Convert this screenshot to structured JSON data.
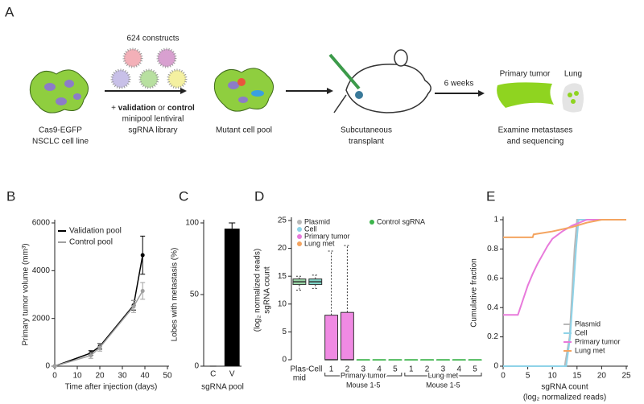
{
  "schematic": {
    "panel": "A",
    "constructs": "624 constructs",
    "cell_line": [
      "Cas9-EGFP",
      "NSCLC cell line"
    ],
    "library": {
      "prefix": "+ ",
      "validation": "validation",
      "middle": " or ",
      "control": "control",
      "lines": [
        "minipool lentiviral",
        "sgRNA library"
      ]
    },
    "mutant": "Mutant cell pool",
    "transplant": [
      "Subcutaneous",
      "transplant"
    ],
    "time": "6 weeks",
    "tumor": "Primary tumor",
    "lung": "Lung",
    "examine": [
      "Examine metastases",
      "and sequencing"
    ]
  },
  "chart_data": [
    {
      "type": "line",
      "panel": "B",
      "ylabel": "Primary tumor volume (mm³)",
      "xlabel": "Time after injection (days)",
      "xlim": [
        0,
        50
      ],
      "xticks": [
        0,
        10,
        20,
        30,
        40,
        50
      ],
      "ylim": [
        0,
        6000
      ],
      "yticks": [
        0,
        2000,
        4000,
        6000
      ],
      "legend": "upper left",
      "markers": true,
      "series": [
        {
          "name": "Validation pool",
          "color": "#000000",
          "x": [
            0,
            16,
            20,
            35,
            39
          ],
          "values": [
            0,
            550,
            830,
            2550,
            4650
          ],
          "errors": [
            0,
            100,
            120,
            200,
            800
          ]
        },
        {
          "name": "Control pool",
          "color": "#a0a0a0",
          "x": [
            0,
            16,
            20,
            35,
            39
          ],
          "values": [
            0,
            450,
            780,
            2500,
            3150
          ],
          "errors": [
            0,
            120,
            150,
            250,
            350
          ]
        }
      ]
    },
    {
      "type": "bar",
      "panel": "C",
      "ylabel": "Lobes with metastasis (%)",
      "xlabel": "sgRNA pool",
      "categories": [
        "C",
        "V"
      ],
      "values": [
        0,
        96
      ],
      "errors": [
        0,
        4
      ],
      "color": "#000000",
      "ylim": [
        0,
        100
      ],
      "yticks": [
        0,
        50,
        100
      ]
    },
    {
      "type": "box",
      "panel": "D",
      "ylabel": [
        "sgRNA count",
        "(log₂ normalized reads)"
      ],
      "categories": [
        [
          "Plas-",
          "mid"
        ],
        [
          "Cell"
        ],
        [
          "1"
        ],
        [
          "2"
        ],
        [
          "3"
        ],
        [
          "4"
        ],
        [
          "5"
        ],
        [
          "1"
        ],
        [
          "2"
        ],
        [
          "3"
        ],
        [
          "4"
        ],
        [
          "5"
        ]
      ],
      "groups": [
        {
          "label": "Primary tumor",
          "sublabel": "Mouse 1-5"
        },
        {
          "label": "Lung met",
          "sublabel": "Mouse 1-5"
        }
      ],
      "ylim": [
        0,
        25
      ],
      "yticks": [
        0,
        5,
        10,
        15,
        20,
        25
      ],
      "legend": [
        {
          "name": "Plasmid",
          "color": "#b8b8b8"
        },
        {
          "name": "Cell",
          "color": "#8fd3e8"
        },
        {
          "name": "Primary tumor",
          "color": "#e87adb"
        },
        {
          "name": "Lung met",
          "color": "#f4a460"
        },
        {
          "name": "Control sgRNA",
          "color": "#3cb44b"
        }
      ],
      "boxes": [
        {
          "low": 12.5,
          "q1": 13.5,
          "median": 14,
          "q3": 14.5,
          "high": 15,
          "color": "#9ad8a8"
        },
        {
          "low": 12.8,
          "q1": 13.5,
          "median": 14,
          "q3": 14.5,
          "high": 15.2,
          "color": "#7fd6c8"
        },
        {
          "low": 0,
          "q1": 0,
          "median": 0,
          "q3": 8,
          "high": 19.5,
          "color": "#f08ae3"
        },
        {
          "low": 0,
          "q1": 0,
          "median": 0,
          "q3": 8.5,
          "high": 20.5,
          "color": "#f08ae3"
        },
        {
          "low": 0,
          "q1": 0,
          "median": 0,
          "q3": 0,
          "high": 0,
          "color": "#3cb44b"
        },
        {
          "low": 0,
          "q1": 0,
          "median": 0,
          "q3": 0,
          "high": 0,
          "color": "#3cb44b"
        },
        {
          "low": 0,
          "q1": 0,
          "median": 0,
          "q3": 0,
          "high": 0,
          "color": "#3cb44b"
        },
        {
          "low": 0,
          "q1": 0,
          "median": 0,
          "q3": 0,
          "high": 0,
          "color": "#3cb44b"
        },
        {
          "low": 0,
          "q1": 0,
          "median": 0,
          "q3": 0,
          "high": 0,
          "color": "#3cb44b"
        },
        {
          "low": 0,
          "q1": 0,
          "median": 0,
          "q3": 0,
          "high": 0,
          "color": "#3cb44b"
        },
        {
          "low": 0,
          "q1": 0,
          "median": 0,
          "q3": 0,
          "high": 0,
          "color": "#3cb44b"
        },
        {
          "low": 0,
          "q1": 0,
          "median": 0,
          "q3": 0,
          "high": 0,
          "color": "#3cb44b"
        }
      ]
    },
    {
      "type": "line",
      "panel": "E",
      "ylabel": "Cumulative fraction",
      "xlabel": [
        "sgRNA count",
        "(log₂ normalized reads)"
      ],
      "xlim": [
        0,
        25
      ],
      "xticks": [
        0,
        5,
        10,
        15,
        20,
        25
      ],
      "ylim": [
        0,
        1
      ],
      "yticks": [
        0,
        0.2,
        0.4,
        0.6,
        0.8,
        1
      ],
      "legend": "lower right",
      "markers": false,
      "series": [
        {
          "name": "Plasmid",
          "color": "#b8b8b8",
          "x": [
            0,
            12.5,
            13.5,
            14,
            14.5,
            15,
            25
          ],
          "values": [
            0,
            0,
            0.2,
            0.5,
            0.8,
            1,
            1
          ]
        },
        {
          "name": "Cell",
          "color": "#8fd3e8",
          "x": [
            0,
            12.8,
            13.6,
            14.2,
            14.8,
            15.3,
            25
          ],
          "values": [
            0,
            0,
            0.2,
            0.5,
            0.8,
            1,
            1
          ]
        },
        {
          "name": "Primary tumor",
          "color": "#e87adb",
          "x": [
            0,
            3,
            4,
            5,
            6,
            7,
            8,
            9,
            10,
            12,
            14,
            17,
            25
          ],
          "values": [
            0.35,
            0.35,
            0.45,
            0.55,
            0.63,
            0.7,
            0.76,
            0.82,
            0.87,
            0.92,
            0.96,
            1,
            1
          ]
        },
        {
          "name": "Lung met",
          "color": "#f4a460",
          "x": [
            0,
            6,
            6.2,
            10,
            14,
            17,
            20,
            25
          ],
          "values": [
            0.88,
            0.88,
            0.9,
            0.92,
            0.95,
            0.98,
            1,
            1
          ]
        }
      ]
    }
  ]
}
